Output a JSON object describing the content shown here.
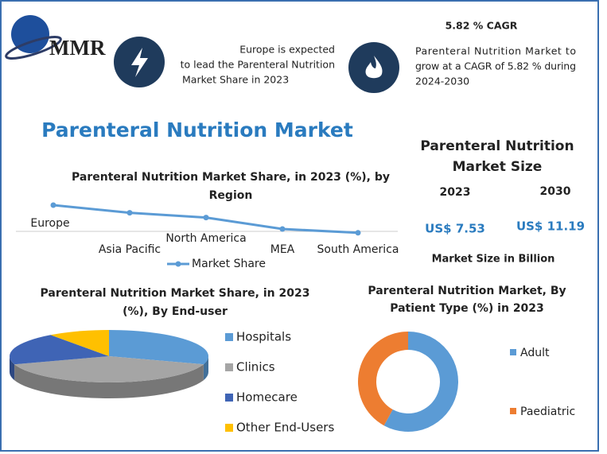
{
  "logo": "MMR",
  "header": {
    "europe_lines": [
      "Europe is expected",
      "to lead the Parenteral Nutrition",
      "Market Share in 2023"
    ],
    "cagr_title": "5.82 % CAGR",
    "cagr_lines": [
      "Parenteral Nutrition Market to",
      "grow at a CAGR of 5.82 % during",
      "2024-2030"
    ]
  },
  "main_title": "Parenteral Nutrition Market",
  "market_size": {
    "title_lines": [
      "Parenteral Nutrition",
      "Market Size"
    ],
    "years": [
      "2023",
      "2030"
    ],
    "amounts": [
      "US$ 7.53",
      "US$ 11.19"
    ],
    "note": "Market Size in Billion"
  },
  "chart_data": [
    {
      "type": "line",
      "title_lines": [
        "Parenteral Nutrition Market Share, in 2023 (%), by",
        "Region"
      ],
      "categories": [
        "Europe",
        "Asia Pacific",
        "North America",
        "MEA",
        "South America"
      ],
      "series": [
        {
          "name": "Market Share",
          "color": "#5b9bd5",
          "values": [
            35,
            27,
            22,
            10,
            6
          ]
        }
      ]
    },
    {
      "type": "pie3d",
      "title_lines": [
        "Parenteral Nutrition Market Share, in 2023",
        "(%), By End-user"
      ],
      "categories": [
        "Hospitals",
        "Clinics",
        "Homecare",
        "Other End-Users"
      ],
      "values": [
        30,
        40,
        20,
        10
      ],
      "colors": [
        "#5b9bd5",
        "#a5a5a5",
        "#3f64b5",
        "#ffc000"
      ]
    },
    {
      "type": "donut",
      "title_lines": [
        "Parenteral Nutrition Market, By",
        "Patient Type (%) in 2023"
      ],
      "categories": [
        "Adult",
        "Paediatric"
      ],
      "values": [
        58,
        42
      ],
      "colors": [
        "#5b9bd5",
        "#ed7d31"
      ]
    }
  ]
}
